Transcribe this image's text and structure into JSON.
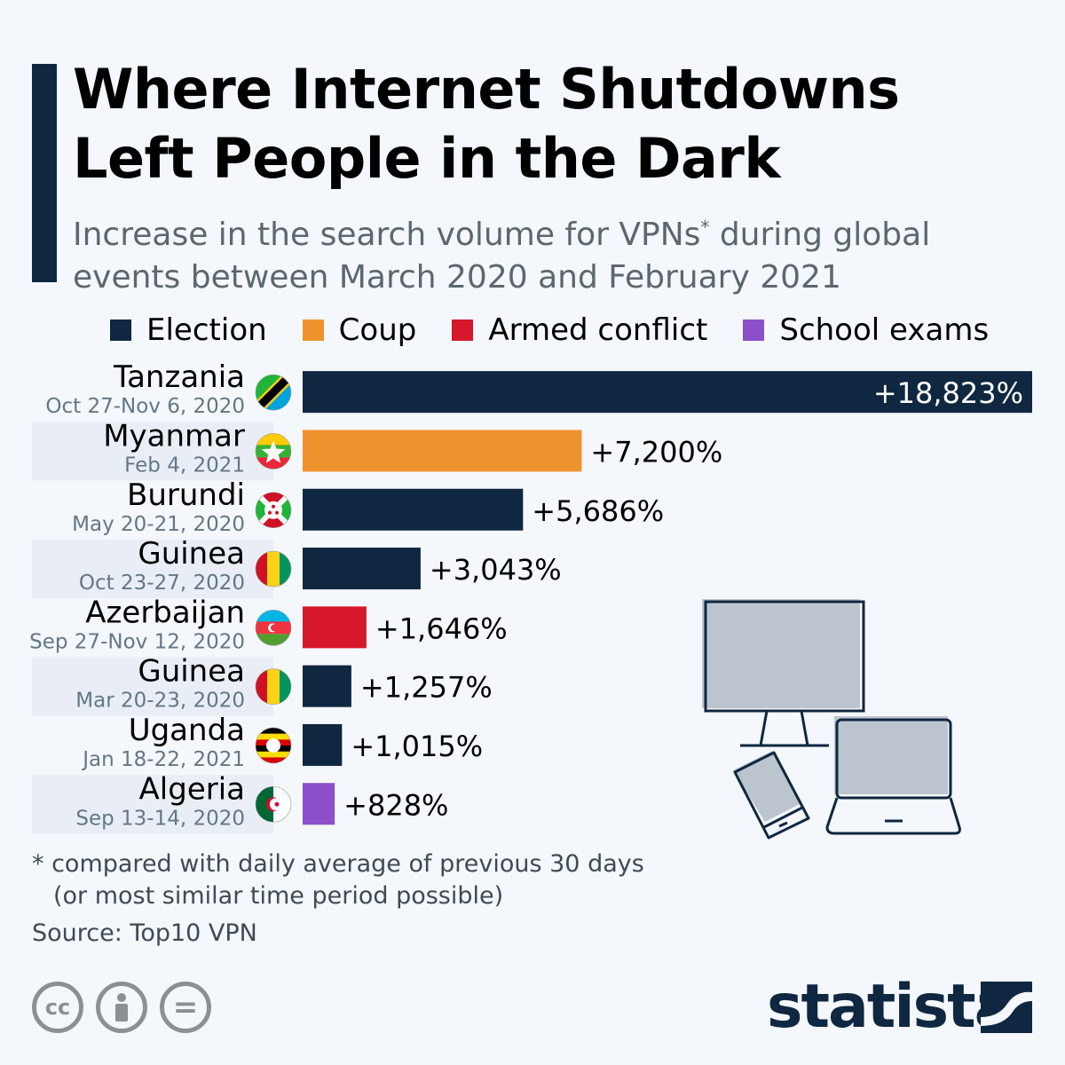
{
  "title_line1": "Where Internet Shutdowns",
  "title_line2": "Left People in the Dark",
  "subtitle_a": "Increase in the search volume for VPNs",
  "subtitle_sup": "*",
  "subtitle_b": " during global",
  "subtitle_line2": "events between March 2020 and February 2021",
  "colors": {
    "Election": "#0f2740",
    "Coup": "#ef922e",
    "Armed conflict": "#d7172b",
    "School exams": "#8a4fc9"
  },
  "chart_data": {
    "type": "bar",
    "orientation": "horizontal",
    "legend": [
      "Election",
      "Coup",
      "Armed conflict",
      "School exams"
    ],
    "legend_placement": "top",
    "categories": [
      "Tanzania",
      "Myanmar",
      "Burundi",
      "Guinea",
      "Azerbaijan",
      "Guinea",
      "Uganda",
      "Algeria"
    ],
    "dates": [
      "Oct 27-Nov 6, 2020",
      "Feb 4, 2021",
      "May 20-21, 2020",
      "Oct 23-27, 2020",
      "Sep 27-Nov 12, 2020",
      "Mar 20-23, 2020",
      "Jan 18-22, 2021",
      "Sep 13-14, 2020"
    ],
    "event_types": [
      "Election",
      "Coup",
      "Election",
      "Election",
      "Armed conflict",
      "Election",
      "Election",
      "School exams"
    ],
    "flags": [
      "tanzania-flag",
      "myanmar-flag",
      "burundi-flag",
      "guinea-flag",
      "azerbaijan-flag",
      "guinea-flag",
      "uganda-flag",
      "algeria-flag"
    ],
    "values": [
      18823,
      7200,
      5686,
      3043,
      1646,
      1257,
      1015,
      828
    ],
    "labels": [
      "+18,823%",
      "+7,200%",
      "+5,686%",
      "+3,043%",
      "+1,646%",
      "+1,257%",
      "+1,015%",
      "+828%"
    ],
    "unit": "%"
  },
  "footnote_1": "* compared with daily average of previous 30 days",
  "footnote_2": "(or most similar time period possible)",
  "source": "Source: Top10 VPN",
  "license": {
    "cc": "cc",
    "equals": "="
  },
  "brand": "statista"
}
